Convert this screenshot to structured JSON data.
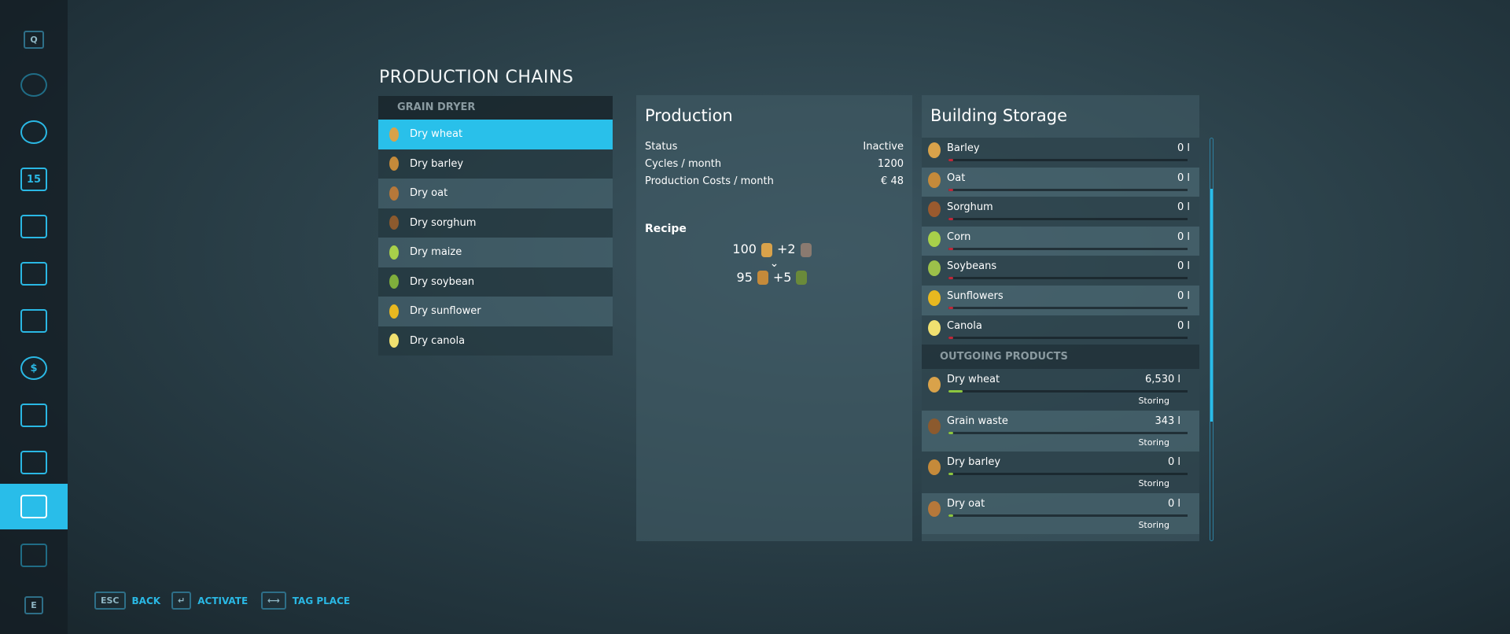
{
  "sidebar": {
    "items": [
      {
        "name": "q-key",
        "label": "Q"
      },
      {
        "name": "map-icon"
      },
      {
        "name": "steering-wheel-icon"
      },
      {
        "name": "calendar-icon",
        "label": "15"
      },
      {
        "name": "weather-icon"
      },
      {
        "name": "statistics-icon"
      },
      {
        "name": "tractor-icon"
      },
      {
        "name": "finances-icon",
        "label": "$"
      },
      {
        "name": "animals-icon"
      },
      {
        "name": "contracts-icon"
      },
      {
        "name": "production-icon",
        "active": true
      },
      {
        "name": "tour-icon"
      },
      {
        "name": "e-key",
        "label": "E"
      }
    ]
  },
  "page_title": "PRODUCTION CHAINS",
  "chains": {
    "header": "GRAIN DRYER",
    "selected": 0,
    "items": [
      {
        "label": "Dry wheat",
        "color": "#d9a24a"
      },
      {
        "label": "Dry barley",
        "color": "#c58a3a"
      },
      {
        "label": "Dry oat",
        "color": "#b6783a"
      },
      {
        "label": "Dry sorghum",
        "color": "#8c5a2e"
      },
      {
        "label": "Dry maize",
        "color": "#a8d04a"
      },
      {
        "label": "Dry soybean",
        "color": "#7fae3c"
      },
      {
        "label": "Dry sunflower",
        "color": "#e8b820"
      },
      {
        "label": "Dry canola",
        "color": "#f0e070"
      }
    ]
  },
  "production": {
    "title": "Production",
    "stats": [
      {
        "label": "Status",
        "value": "Inactive"
      },
      {
        "label": "Cycles / month",
        "value": "1200"
      },
      {
        "label": "Production Costs / month",
        "value": "€ 48"
      }
    ],
    "recipe_title": "Recipe",
    "input_amount": "100",
    "input_extra": "+2",
    "output_amount": "95",
    "output_extra": "+5",
    "arrow": "⌄"
  },
  "storage": {
    "title": "Building Storage",
    "inputs": [
      {
        "name": "Barley",
        "value": "0 l",
        "color": "#d9a24a"
      },
      {
        "name": "Oat",
        "value": "0 l",
        "color": "#c58a3a"
      },
      {
        "name": "Sorghum",
        "value": "0 l",
        "color": "#9a5a2e"
      },
      {
        "name": "Corn",
        "value": "0 l",
        "color": "#a8d04a"
      },
      {
        "name": "Soybeans",
        "value": "0 l",
        "color": "#9cc04a"
      },
      {
        "name": "Sunflowers",
        "value": "0 l",
        "color": "#e8b820"
      },
      {
        "name": "Canola",
        "value": "0 l",
        "color": "#f0e070"
      }
    ],
    "outgoing_header": "OUTGOING PRODUCTS",
    "outputs": [
      {
        "name": "Dry wheat",
        "value": "6,530 l",
        "status": "Storing",
        "fill": 0.06,
        "color": "#d9a24a"
      },
      {
        "name": "Grain waste",
        "value": "343 l",
        "status": "Storing",
        "fill": 0.01,
        "color": "#8c5a2e"
      },
      {
        "name": "Dry barley",
        "value": "0 l",
        "status": "Storing",
        "fill": 0,
        "color": "#c58a3a"
      },
      {
        "name": "Dry oat",
        "value": "0 l",
        "status": "Storing",
        "fill": 0,
        "color": "#b6783a"
      }
    ],
    "empty_color": "#c0283a",
    "fill_color": "#8cc63f"
  },
  "footer": [
    {
      "key": "ESC",
      "label": "BACK"
    },
    {
      "key": "↵",
      "label": "ACTIVATE"
    },
    {
      "key": "⟷",
      "label": "TAG PLACE"
    }
  ]
}
